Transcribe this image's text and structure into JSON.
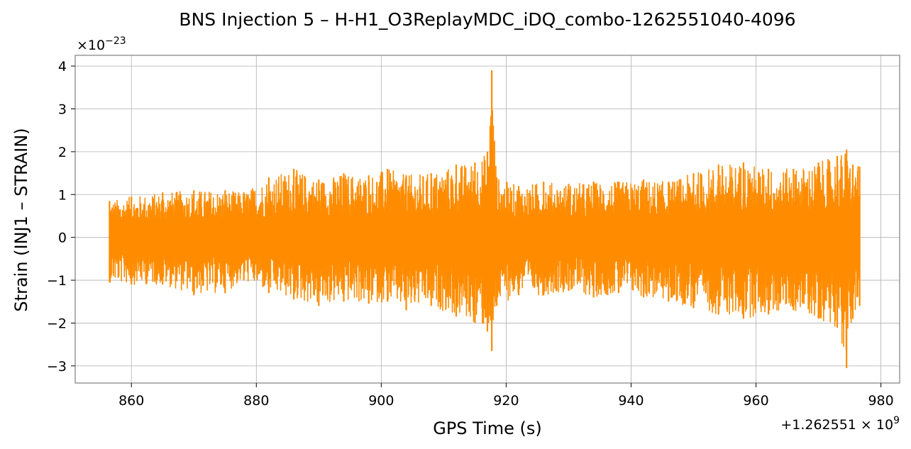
{
  "chart_data": {
    "type": "line",
    "title": "BNS Injection 5 – H-H1_O3ReplayMDC_iDQ_combo-1262551040-4096",
    "xlabel": "GPS Time (s)",
    "ylabel": "Strain (INJ1 – STRAIN)",
    "x_offset_label": "+1.262551 × 10",
    "x_offset_exponent": "9",
    "y_scale_label": "×10",
    "y_scale_exponent": "−23",
    "xlim": [
      851,
      983
    ],
    "ylim": [
      -3.4,
      4.25
    ],
    "x_ticks": [
      860,
      880,
      900,
      920,
      940,
      960,
      980
    ],
    "y_ticks": [
      -3,
      -2,
      -1,
      0,
      1,
      2,
      3,
      4
    ],
    "y_tick_labels": [
      "−3",
      "−2",
      "−1",
      "0",
      "1",
      "2",
      "3",
      "4"
    ],
    "grid": true,
    "series": [
      {
        "color": "#ff8c00",
        "x_range": [
          856.5,
          976.6
        ],
        "envelope": [
          {
            "x": 856.5,
            "max": 0.85,
            "min": -1.05
          },
          {
            "x": 860.0,
            "max": 0.95,
            "min": -1.1
          },
          {
            "x": 865.0,
            "max": 1.05,
            "min": -1.1
          },
          {
            "x": 870.0,
            "max": 1.1,
            "min": -1.35
          },
          {
            "x": 875.0,
            "max": 1.1,
            "min": -1.3
          },
          {
            "x": 878.0,
            "max": 1.05,
            "min": -1.0
          },
          {
            "x": 882.0,
            "max": 1.4,
            "min": -1.3
          },
          {
            "x": 886.0,
            "max": 1.6,
            "min": -1.45
          },
          {
            "x": 890.0,
            "max": 1.35,
            "min": -1.6
          },
          {
            "x": 894.0,
            "max": 1.5,
            "min": -1.5
          },
          {
            "x": 898.0,
            "max": 1.45,
            "min": -1.55
          },
          {
            "x": 901.0,
            "max": 1.6,
            "min": -1.5
          },
          {
            "x": 904.0,
            "max": 1.45,
            "min": -1.7
          },
          {
            "x": 908.0,
            "max": 1.5,
            "min": -1.6
          },
          {
            "x": 912.0,
            "max": 1.7,
            "min": -1.85
          },
          {
            "x": 915.0,
            "max": 1.75,
            "min": -2.0
          },
          {
            "x": 917.0,
            "max": 2.0,
            "min": -2.2
          },
          {
            "x": 917.7,
            "max": 3.9,
            "min": -2.65
          },
          {
            "x": 918.5,
            "max": 1.4,
            "min": -1.6
          },
          {
            "x": 922.0,
            "max": 1.2,
            "min": -1.35
          },
          {
            "x": 926.0,
            "max": 1.3,
            "min": -1.35
          },
          {
            "x": 930.0,
            "max": 1.25,
            "min": -1.25
          },
          {
            "x": 934.0,
            "max": 1.3,
            "min": -1.4
          },
          {
            "x": 938.0,
            "max": 1.3,
            "min": -1.3
          },
          {
            "x": 942.0,
            "max": 1.35,
            "min": -1.4
          },
          {
            "x": 946.0,
            "max": 1.3,
            "min": -1.5
          },
          {
            "x": 950.0,
            "max": 1.5,
            "min": -1.65
          },
          {
            "x": 954.0,
            "max": 1.7,
            "min": -1.8
          },
          {
            "x": 958.0,
            "max": 1.75,
            "min": -1.9
          },
          {
            "x": 962.0,
            "max": 1.6,
            "min": -1.8
          },
          {
            "x": 966.0,
            "max": 1.6,
            "min": -1.7
          },
          {
            "x": 970.0,
            "max": 1.75,
            "min": -1.9
          },
          {
            "x": 973.0,
            "max": 1.9,
            "min": -2.1
          },
          {
            "x": 974.5,
            "max": 2.05,
            "min": -3.05
          },
          {
            "x": 975.5,
            "max": 1.7,
            "min": -1.9
          },
          {
            "x": 976.6,
            "max": 1.65,
            "min": -1.6
          }
        ]
      }
    ]
  }
}
